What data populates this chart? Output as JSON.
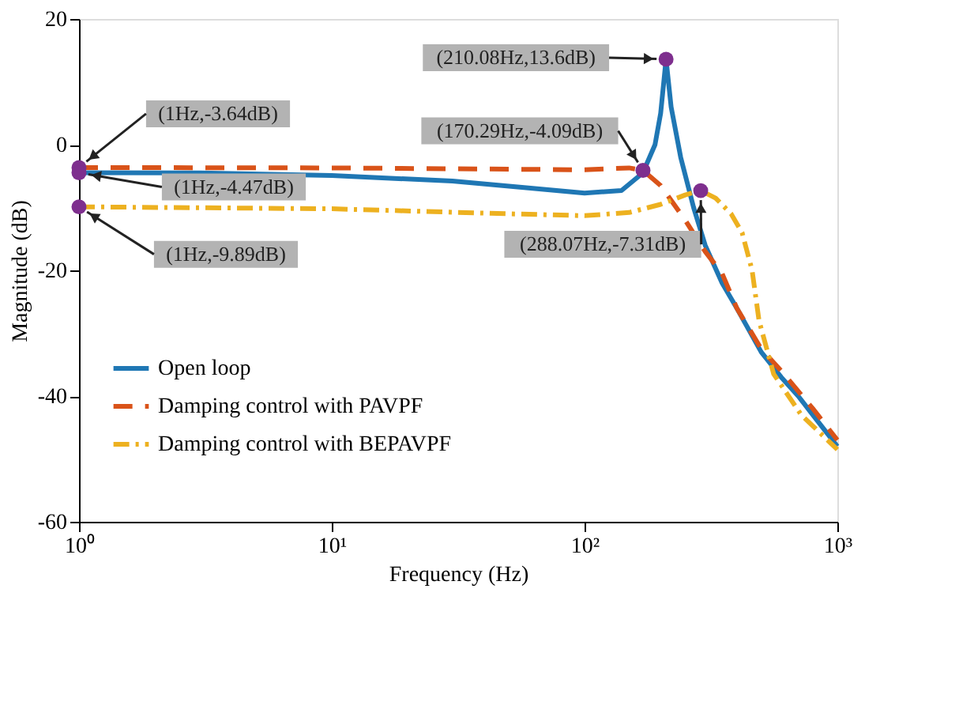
{
  "chart_data": {
    "type": "line",
    "xlabel": "Frequency  (Hz)",
    "ylabel": "Magnitude (dB)",
    "log": "x",
    "grid": false,
    "legend": "bottom left",
    "xlim": [
      1,
      1000
    ],
    "ylim": [
      -60,
      20
    ],
    "xticks": [
      {
        "value": 1,
        "label": "10⁰"
      },
      {
        "value": 10,
        "label": "10¹"
      },
      {
        "value": 100,
        "label": "10²"
      },
      {
        "value": 1000,
        "label": "10³"
      }
    ],
    "yticks": [
      -60,
      -40,
      -20,
      0,
      20
    ],
    "series": [
      {
        "name": "Open loop",
        "color": "#1f77b4",
        "line_style": "solid",
        "marker": "none",
        "x": [
          1,
          3,
          10,
          30,
          60,
          100,
          140,
          170,
          190,
          200,
          210.08,
          220,
          240,
          270,
          300,
          350,
          400,
          500,
          600,
          700,
          800,
          1000
        ],
        "values": [
          -4.47,
          -4.5,
          -4.9,
          -5.8,
          -6.9,
          -7.7,
          -7.3,
          -4.5,
          0,
          5,
          13.6,
          6,
          -2,
          -10,
          -16,
          -22,
          -26,
          -33,
          -37,
          -40,
          -43,
          -48
        ]
      },
      {
        "name": "Damping control with PAVPF",
        "color": "#d95319",
        "line_style": "dashed",
        "marker": "none",
        "x": [
          1,
          10,
          50,
          100,
          150,
          170.29,
          200,
          250,
          300,
          350,
          400,
          500,
          600,
          800,
          1000
        ],
        "values": [
          -3.64,
          -3.7,
          -3.9,
          -4.0,
          -3.7,
          -4.09,
          -6.5,
          -12,
          -17,
          -20.5,
          -26,
          -32.5,
          -36,
          -42,
          -47
        ]
      },
      {
        "name": "Damping control with BEPAVPF",
        "color": "#edb120",
        "line_style": "dashdot",
        "marker": "none",
        "x": [
          1,
          10,
          50,
          100,
          150,
          200,
          250,
          288.07,
          330,
          380,
          420,
          460,
          490,
          560,
          720,
          1000
        ],
        "values": [
          -9.89,
          -10.2,
          -11,
          -11.3,
          -10.8,
          -9.5,
          -8,
          -7.31,
          -8.5,
          -11,
          -14,
          -20,
          -28,
          -36.5,
          -43,
          -48.5
        ]
      },
      {
        "type": "scatter",
        "color": "#7e2f8e",
        "marker": "circle",
        "x": [
          1,
          1,
          1,
          170.29,
          210.08,
          288.07
        ],
        "values": [
          -3.64,
          -4.47,
          -9.89,
          -4.09,
          13.6,
          -7.31
        ]
      }
    ],
    "annotations": [
      {
        "text": "(210.08Hz,13.6dB)",
        "x": 210.08,
        "y": 13.6
      },
      {
        "text": "(170.29Hz,-4.09dB)",
        "x": 170.29,
        "y": -4.09
      },
      {
        "text": "(1Hz,-3.64dB)",
        "x": 1,
        "y": -3.64
      },
      {
        "text": "(1Hz,-4.47dB)",
        "x": 1,
        "y": -4.47
      },
      {
        "text": "(1Hz,-9.89dB)",
        "x": 1,
        "y": -9.89
      },
      {
        "text": "(288.07Hz,-7.31dB)",
        "x": 288.07,
        "y": -7.31
      }
    ]
  }
}
